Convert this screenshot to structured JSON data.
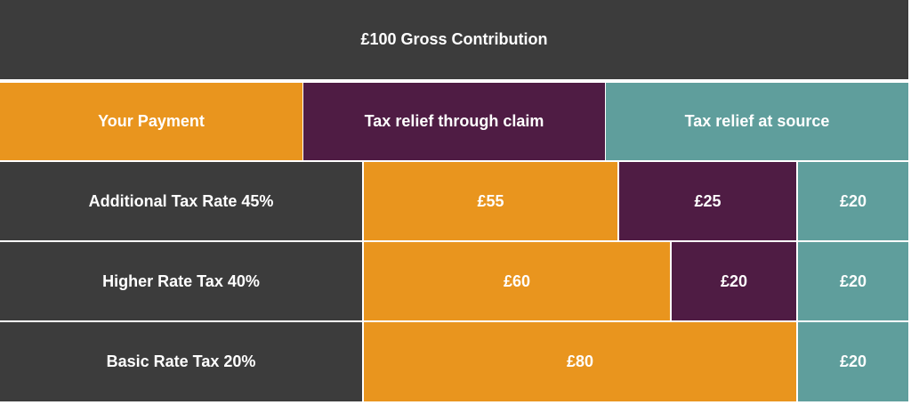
{
  "colors": {
    "dark": "#3c3c3c",
    "payment": "#e9951e",
    "claim": "#4f1c44",
    "source": "#5f9e9c"
  },
  "title": "£100 Gross Contribution",
  "legend": {
    "payment": "Your Payment",
    "claim": "Tax relief through claim",
    "source": "Tax relief at source"
  },
  "rows": [
    {
      "label": "Additional Tax Rate 45%",
      "payment": "£55",
      "claim": "£25",
      "source": "£20"
    },
    {
      "label": "Higher Rate Tax 40%",
      "payment": "£60",
      "claim": "£20",
      "source": "£20"
    },
    {
      "label": "Basic Rate Tax 20%",
      "payment": "£80",
      "source": "£20"
    }
  ]
}
